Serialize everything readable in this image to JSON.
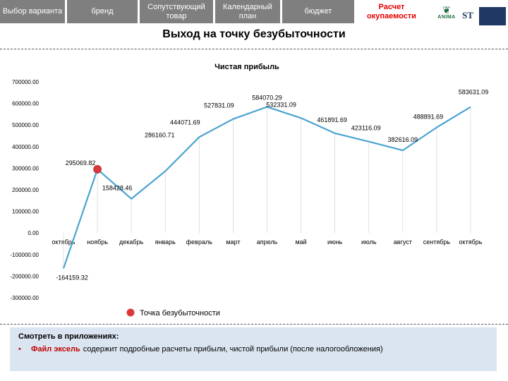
{
  "nav": {
    "tabs": [
      {
        "label": "Выбор варианта",
        "active": false
      },
      {
        "label": "бренд",
        "active": false
      },
      {
        "label": "Сопутствующий товар",
        "active": false
      },
      {
        "label": "Календарный план",
        "active": false
      },
      {
        "label": "бюджет",
        "active": false
      },
      {
        "label": "Расчет окупаемости",
        "active": true
      }
    ]
  },
  "logos": {
    "anima_text": "ANIMA",
    "st_text": "ST"
  },
  "page": {
    "title": "Выход на точку безубыточности"
  },
  "colors": {
    "tab_bg": "#7f7f7f",
    "active_tab_text": "#e60000",
    "line": "#4aa3d1",
    "marker": "#d9383c",
    "footer_bg": "#dbe5f1",
    "highlight": "#c00000"
  },
  "chart_data": {
    "type": "line",
    "title": "Чистая прибыль",
    "xlabel": "",
    "ylabel": "",
    "ylim": [
      -300000,
      700000
    ],
    "y_ticks": [
      "-300000.00",
      "-200000.00",
      "-100000.00",
      "0.00",
      "100000.00",
      "200000.00",
      "300000.00",
      "400000.00",
      "500000.00",
      "600000.00",
      "700000.00"
    ],
    "grid": false,
    "legend_position": "bottom",
    "categories": [
      "октябрь",
      "ноябрь",
      "декабрь",
      "январь",
      "февраль",
      "март",
      "апрель",
      "май",
      "июнь",
      "июль",
      "август",
      "сентябрь",
      "октябрь"
    ],
    "series": [
      {
        "values": [
          -164159.32,
          295069.82,
          158428.46,
          286160.71,
          444071.69,
          527831.09,
          584070.29,
          532331.09,
          461891.69,
          423116.09,
          382616.09,
          488891.69,
          583631.09
        ],
        "labels": [
          "-164159.32",
          "295069.82",
          "158428.46",
          "286160.71",
          "444071.69",
          "527831.09",
          "584070.29",
          "532331.09",
          "461891.69",
          "423116.09",
          "382616.09",
          "488891.69",
          "583631.09"
        ]
      }
    ],
    "breakeven": {
      "index": 1,
      "legend": "Точка безубыточности"
    }
  },
  "footer": {
    "heading": "Смотреть в приложениях:",
    "bullet": "•",
    "highlight": "Файл эксель",
    "text": "содержит подробные расчеты прибыли, чистой прибыли (после налогообложения)"
  }
}
